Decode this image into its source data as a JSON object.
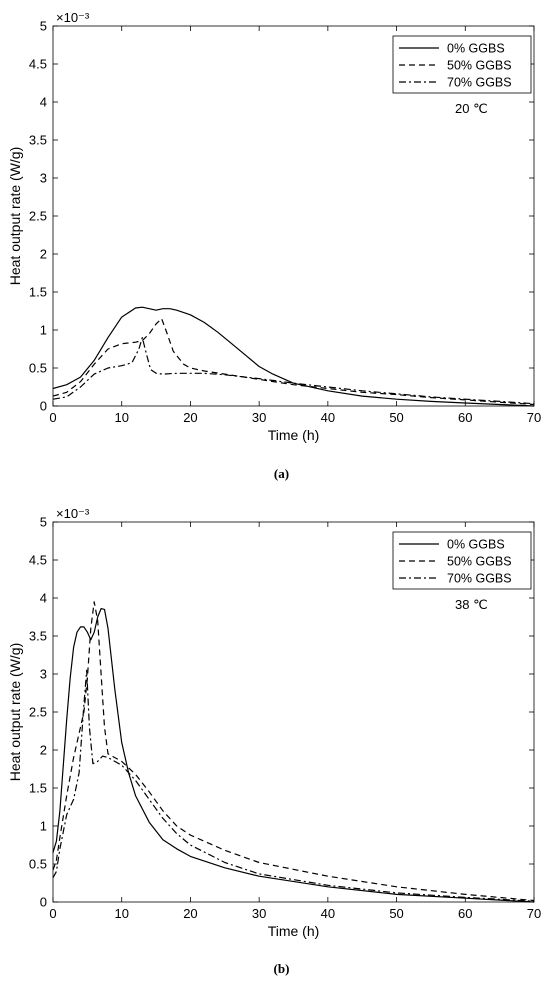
{
  "chart_data": [
    {
      "type": "line",
      "panel_label": "(a)",
      "xlabel": "Time (h)",
      "ylabel": "Heat output rate (W/g)",
      "exponent_label": "×10⁻³",
      "annotation": "20 ℃",
      "xlim": [
        0,
        70
      ],
      "ylim": [
        0,
        5
      ],
      "xticks": [
        "0",
        "10",
        "20",
        "30",
        "40",
        "50",
        "60",
        "70"
      ],
      "yticks": [
        "0",
        "0.5",
        "1",
        "1.5",
        "2",
        "2.5",
        "3",
        "3.5",
        "4",
        "4.5",
        "5"
      ],
      "legend_position": "top-right",
      "grid": false,
      "series": [
        {
          "name": "0% GGBS",
          "dash": "solid",
          "x": [
            0,
            2,
            4,
            6,
            8,
            10,
            12,
            13,
            14,
            15,
            16,
            17,
            18,
            20,
            22,
            24,
            26,
            28,
            30,
            32,
            35,
            40,
            45,
            50,
            55,
            60,
            65,
            70
          ],
          "y": [
            0.23,
            0.28,
            0.38,
            0.6,
            0.9,
            1.17,
            1.29,
            1.3,
            1.28,
            1.26,
            1.28,
            1.28,
            1.26,
            1.2,
            1.1,
            0.97,
            0.82,
            0.67,
            0.52,
            0.42,
            0.3,
            0.2,
            0.13,
            0.09,
            0.06,
            0.04,
            0.02,
            0.0
          ]
        },
        {
          "name": "50% GGBS",
          "dash": "dashed",
          "x": [
            0,
            2,
            4,
            6,
            8,
            10,
            12,
            13,
            14,
            15,
            15.8,
            16.5,
            17.5,
            19,
            20,
            22,
            25,
            30,
            35,
            40,
            45,
            50,
            55,
            60,
            65,
            70
          ],
          "y": [
            0.13,
            0.18,
            0.32,
            0.55,
            0.75,
            0.82,
            0.84,
            0.86,
            0.95,
            1.08,
            1.15,
            0.98,
            0.72,
            0.55,
            0.5,
            0.46,
            0.42,
            0.35,
            0.28,
            0.23,
            0.18,
            0.15,
            0.11,
            0.08,
            0.05,
            0.02
          ]
        },
        {
          "name": "70% GGBS",
          "dash": "dashdot",
          "x": [
            0,
            2,
            4,
            6,
            8,
            10,
            11.5,
            12.5,
            13,
            13.6,
            14.2,
            15,
            16,
            18,
            20,
            22,
            25,
            30,
            35,
            40,
            45,
            50,
            55,
            60,
            65,
            70
          ],
          "y": [
            0.09,
            0.12,
            0.25,
            0.42,
            0.5,
            0.53,
            0.57,
            0.75,
            0.9,
            0.68,
            0.48,
            0.43,
            0.42,
            0.43,
            0.43,
            0.43,
            0.41,
            0.36,
            0.3,
            0.25,
            0.2,
            0.16,
            0.12,
            0.09,
            0.06,
            0.03
          ]
        }
      ]
    },
    {
      "type": "line",
      "panel_label": "(b)",
      "xlabel": "Time (h)",
      "ylabel": "Heat output rate (W/g)",
      "exponent_label": "×10⁻³",
      "annotation": "38 ℃",
      "xlim": [
        0,
        70
      ],
      "ylim": [
        0,
        5
      ],
      "xticks": [
        "0",
        "10",
        "20",
        "30",
        "40",
        "50",
        "60",
        "70"
      ],
      "yticks": [
        "0",
        "0.5",
        "1",
        "1.5",
        "2",
        "2.5",
        "3",
        "3.5",
        "4",
        "4.5",
        "5"
      ],
      "legend_position": "top-right",
      "grid": false,
      "series": [
        {
          "name": "0% GGBS",
          "dash": "solid",
          "x": [
            0,
            0.5,
            1,
            1.5,
            2,
            2.5,
            3,
            3.5,
            4,
            4.5,
            5,
            5.5,
            6,
            6.5,
            7,
            7.5,
            8,
            8.5,
            9,
            10,
            11,
            12,
            14,
            16,
            18,
            20,
            25,
            30,
            40,
            50,
            60,
            70
          ],
          "y": [
            0.65,
            0.8,
            1.2,
            1.8,
            2.4,
            2.95,
            3.35,
            3.55,
            3.62,
            3.62,
            3.55,
            3.45,
            3.55,
            3.75,
            3.86,
            3.85,
            3.6,
            3.2,
            2.8,
            2.1,
            1.7,
            1.4,
            1.05,
            0.82,
            0.7,
            0.6,
            0.45,
            0.34,
            0.2,
            0.1,
            0.05,
            0.0
          ]
        },
        {
          "name": "50% GGBS",
          "dash": "dashed",
          "x": [
            0,
            0.5,
            1,
            2,
            3,
            4,
            4.5,
            5,
            5.5,
            6,
            6.5,
            7,
            7.5,
            8,
            9,
            10,
            12,
            14,
            16,
            18,
            20,
            25,
            30,
            40,
            50,
            60,
            70
          ],
          "y": [
            0.42,
            0.55,
            0.85,
            1.4,
            1.9,
            2.3,
            2.5,
            2.95,
            3.6,
            3.95,
            3.7,
            3.0,
            2.3,
            1.95,
            1.9,
            1.85,
            1.68,
            1.45,
            1.2,
            1.0,
            0.88,
            0.68,
            0.52,
            0.34,
            0.2,
            0.1,
            0.02
          ]
        },
        {
          "name": "70% GGBS",
          "dash": "dashdot",
          "x": [
            0,
            0.5,
            1,
            2,
            3,
            3.8,
            4.5,
            4.9,
            5.3,
            5.8,
            6.5,
            7.2,
            8,
            9,
            10,
            12,
            14,
            16,
            18,
            20,
            25,
            30,
            40,
            50,
            60,
            70
          ],
          "y": [
            0.32,
            0.4,
            0.7,
            1.15,
            1.35,
            1.7,
            2.6,
            3.05,
            2.3,
            1.82,
            1.85,
            1.92,
            1.9,
            1.85,
            1.8,
            1.6,
            1.35,
            1.1,
            0.9,
            0.75,
            0.52,
            0.37,
            0.22,
            0.12,
            0.06,
            0.01
          ]
        }
      ]
    }
  ]
}
